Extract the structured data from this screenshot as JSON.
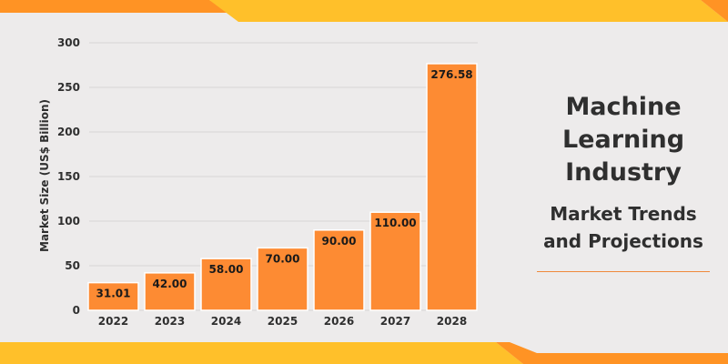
{
  "colors": {
    "background": "#edebeb",
    "bar": "#fd8b33",
    "stripe_light": "#ffc02a",
    "stripe_dark": "#ff9324",
    "text": "#2f2f2f",
    "accent_rule": "#ef8a3c"
  },
  "panel": {
    "title_lines": [
      "Machine",
      "Learning",
      "Industry"
    ],
    "subtitle_lines": [
      "Market Trends",
      "and Projections"
    ]
  },
  "chart_data": {
    "type": "bar",
    "categories": [
      "2022",
      "2023",
      "2024",
      "2025",
      "2026",
      "2027",
      "2028"
    ],
    "values": [
      31.01,
      42.0,
      58.0,
      70.0,
      90.0,
      110.0,
      276.58
    ],
    "value_labels": [
      "31.01",
      "42.00",
      "58.00",
      "70.00",
      "90.00",
      "110.00",
      "276.58"
    ],
    "title": "",
    "xlabel": "",
    "ylabel": "Market Size (US$ Billion)",
    "ylim": [
      0,
      300
    ],
    "yticks": [
      0,
      50,
      100,
      150,
      200,
      250,
      300
    ],
    "grid": true,
    "legend": "none"
  }
}
